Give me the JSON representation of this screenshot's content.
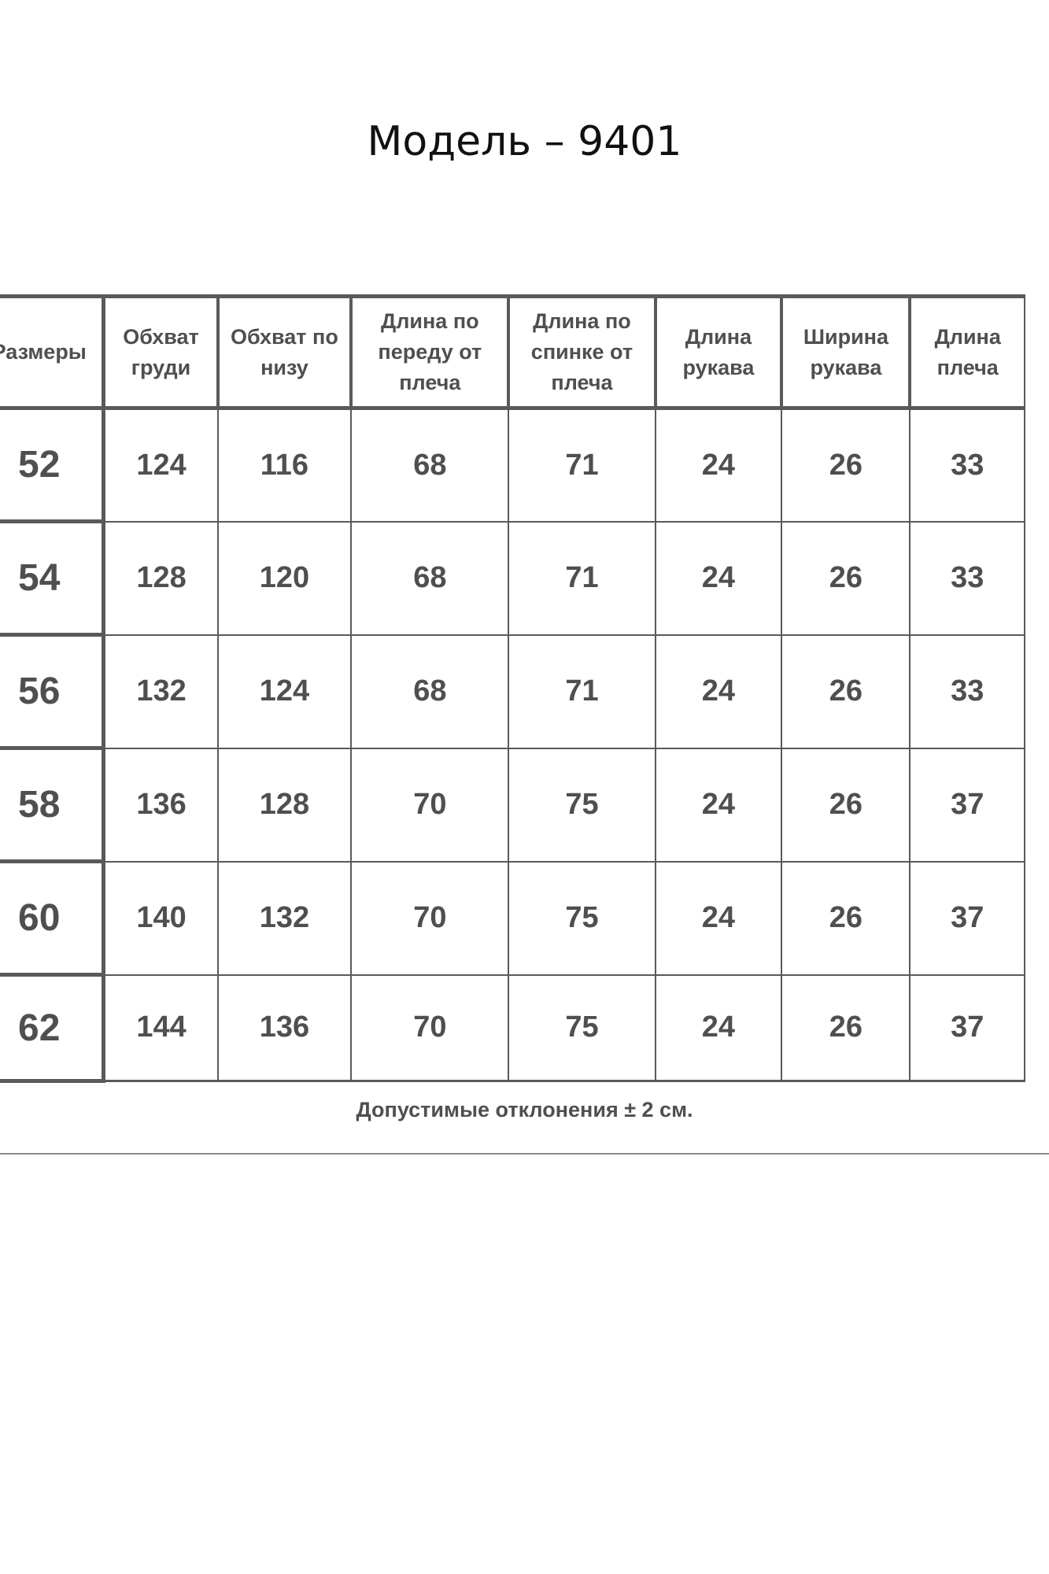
{
  "title": "Модель – 9401",
  "table": {
    "headers": [
      "Размеры",
      "Обхват груди",
      "Обхват по низу",
      "Длина по переду от плеча",
      "Длина по спинке от плеча",
      "Длина рукава",
      "Ширина рукава",
      "Длина плеча"
    ],
    "rows": [
      [
        "52",
        "124",
        "116",
        "68",
        "71",
        "24",
        "26",
        "33"
      ],
      [
        "54",
        "128",
        "120",
        "68",
        "71",
        "24",
        "26",
        "33"
      ],
      [
        "56",
        "132",
        "124",
        "68",
        "71",
        "24",
        "26",
        "33"
      ],
      [
        "58",
        "136",
        "128",
        "70",
        "75",
        "24",
        "26",
        "37"
      ],
      [
        "60",
        "140",
        "132",
        "70",
        "75",
        "24",
        "26",
        "37"
      ],
      [
        "62",
        "144",
        "136",
        "70",
        "75",
        "24",
        "26",
        "37"
      ]
    ]
  },
  "note": "Допустимые отклонения ± 2 см.",
  "colors": {
    "text": "#4f4f4f",
    "border": "#5a5a5a",
    "title": "#111111"
  }
}
